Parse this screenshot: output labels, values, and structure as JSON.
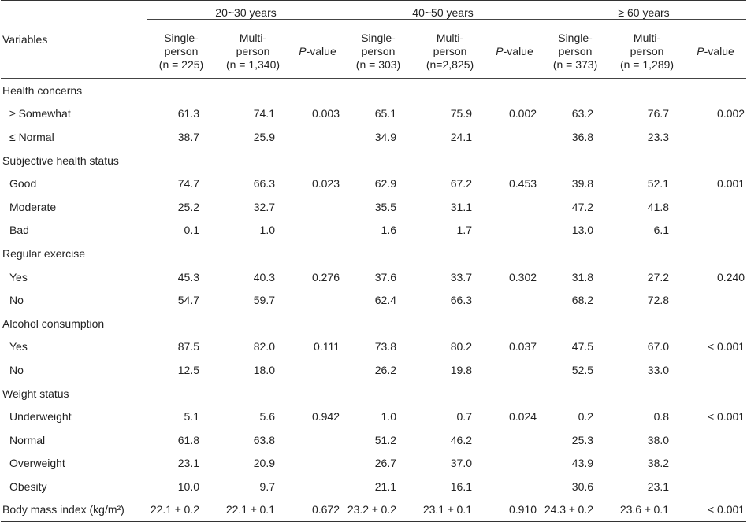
{
  "header": {
    "variables_label": "Variables",
    "groups": [
      "20~30 years",
      "40~50 years",
      "≥ 60 years"
    ],
    "sub_columns": [
      {
        "line1": "Single-",
        "line2": "person",
        "line3": "(n = 225)"
      },
      {
        "line1": "Multi-",
        "line2": "person",
        "line3": "(n = 1,340)"
      },
      {
        "p_italic": "P",
        "p_rest": "-value"
      },
      {
        "line1": "Single-",
        "line2": "person",
        "line3": "(n = 303)"
      },
      {
        "line1": "Multi-",
        "line2": "person",
        "line3": "(n=2,825)"
      },
      {
        "p_italic": "P",
        "p_rest": "-value"
      },
      {
        "line1": "Single-",
        "line2": "person",
        "line3": "(n = 373)"
      },
      {
        "line1": "Multi-",
        "line2": "person",
        "line3": "(n = 1,289)"
      },
      {
        "p_italic": "P",
        "p_rest": "-value"
      }
    ]
  },
  "rows": [
    {
      "type": "section",
      "label": "Health concerns",
      "cells": [
        "",
        "",
        "",
        "",
        "",
        "",
        "",
        "",
        ""
      ]
    },
    {
      "type": "item",
      "label": "≥ Somewhat",
      "cells": [
        "61.3",
        "74.1",
        "0.003",
        "65.1",
        "75.9",
        "0.002",
        "63.2",
        "76.7",
        "0.002"
      ]
    },
    {
      "type": "item",
      "label": "≤ Normal",
      "cells": [
        "38.7",
        "25.9",
        "",
        "34.9",
        "24.1",
        "",
        "36.8",
        "23.3",
        ""
      ]
    },
    {
      "type": "section",
      "label": "Subjective health status",
      "cells": [
        "",
        "",
        "",
        "",
        "",
        "",
        "",
        "",
        ""
      ]
    },
    {
      "type": "item",
      "label": "Good",
      "cells": [
        "74.7",
        "66.3",
        "0.023",
        "62.9",
        "67.2",
        "0.453",
        "39.8",
        "52.1",
        "0.001"
      ]
    },
    {
      "type": "item",
      "label": "Moderate",
      "cells": [
        "25.2",
        "32.7",
        "",
        "35.5",
        "31.1",
        "",
        "47.2",
        "41.8",
        ""
      ]
    },
    {
      "type": "item",
      "label": "Bad",
      "cells": [
        "0.1",
        "1.0",
        "",
        "1.6",
        "1.7",
        "",
        "13.0",
        "6.1",
        ""
      ]
    },
    {
      "type": "section",
      "label": "Regular exercise",
      "cells": [
        "",
        "",
        "",
        "",
        "",
        "",
        "",
        "",
        ""
      ]
    },
    {
      "type": "item",
      "label": "Yes",
      "cells": [
        "45.3",
        "40.3",
        "0.276",
        "37.6",
        "33.7",
        "0.302",
        "31.8",
        "27.2",
        "0.240"
      ]
    },
    {
      "type": "item",
      "label": "No",
      "cells": [
        "54.7",
        "59.7",
        "",
        "62.4",
        "66.3",
        "",
        "68.2",
        "72.8",
        ""
      ]
    },
    {
      "type": "section",
      "label": "Alcohol consumption",
      "cells": [
        "",
        "",
        "",
        "",
        "",
        "",
        "",
        "",
        ""
      ]
    },
    {
      "type": "item",
      "label": "Yes",
      "cells": [
        "87.5",
        "82.0",
        "0.111",
        "73.8",
        "80.2",
        "0.037",
        "47.5",
        "67.0",
        "< 0.001"
      ]
    },
    {
      "type": "item",
      "label": "No",
      "cells": [
        "12.5",
        "18.0",
        "",
        "26.2",
        "19.8",
        "",
        "52.5",
        "33.0",
        ""
      ]
    },
    {
      "type": "section",
      "label": "Weight status",
      "cells": [
        "",
        "",
        "",
        "",
        "",
        "",
        "",
        "",
        ""
      ]
    },
    {
      "type": "item",
      "label": "Underweight",
      "cells": [
        "5.1",
        "5.6",
        "0.942",
        "1.0",
        "0.7",
        "0.024",
        "0.2",
        "0.8",
        "< 0.001"
      ]
    },
    {
      "type": "item",
      "label": "Normal",
      "cells": [
        "61.8",
        "63.8",
        "",
        "51.2",
        "46.2",
        "",
        "25.3",
        "38.0",
        ""
      ]
    },
    {
      "type": "item",
      "label": "Overweight",
      "cells": [
        "23.1",
        "20.9",
        "",
        "26.7",
        "37.0",
        "",
        "43.9",
        "38.2",
        ""
      ]
    },
    {
      "type": "item",
      "label": "Obesity",
      "cells": [
        "10.0",
        "9.7",
        "",
        "21.1",
        "16.1",
        "",
        "30.6",
        "23.1",
        ""
      ]
    },
    {
      "type": "section",
      "label": "Body mass index (kg/m²)",
      "cells": [
        "22.1 ± 0.2",
        "22.1 ± 0.1",
        "0.672",
        "23.2 ± 0.2",
        "23.1 ± 0.1",
        "0.910",
        "24.3 ± 0.2",
        "23.6 ± 0.1",
        "< 0.001"
      ]
    }
  ]
}
